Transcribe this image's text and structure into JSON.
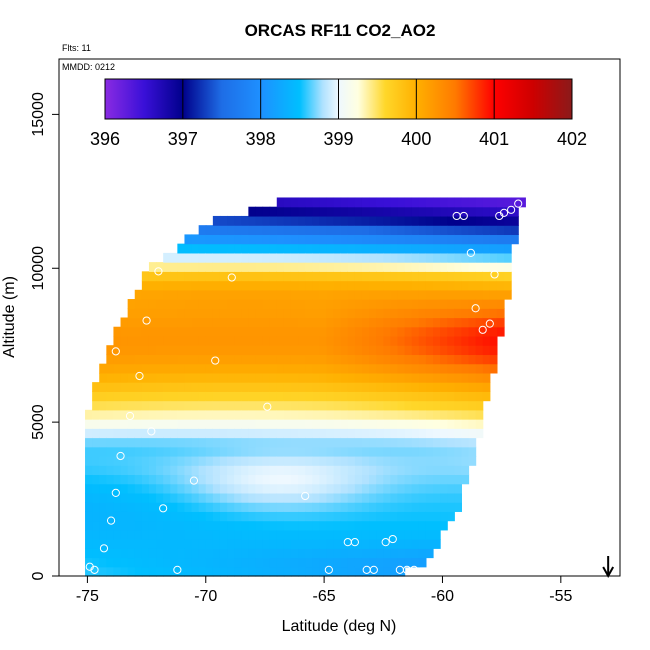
{
  "chart_data": {
    "type": "heatmap",
    "title": "ORCAS RF11 CO2_AO2",
    "xlabel": "Latitude (deg N)",
    "ylabel": "Altitude (m)",
    "xlim": [
      -76.2,
      -52.5
    ],
    "ylim": [
      0,
      16800
    ],
    "x_ticks": [
      -75,
      -70,
      -65,
      -60,
      -55
    ],
    "x_tick_labels": [
      "-75",
      "-70",
      "-65",
      "-60",
      "-55"
    ],
    "y_ticks": [
      0,
      5000,
      10000,
      15000
    ],
    "y_tick_labels": [
      "0",
      "5000",
      "10000",
      "15000"
    ],
    "annotations": {
      "flights": "Flts: 11",
      "date": "MMDD: 0212"
    },
    "colorbar": {
      "min": 396,
      "max": 402,
      "ticks": [
        396,
        397,
        398,
        399,
        400,
        401,
        402
      ],
      "tick_labels": [
        "396",
        "397",
        "398",
        "399",
        "400",
        "401",
        "402"
      ],
      "stops": [
        {
          "value": 396.0,
          "color": "#8a2be2"
        },
        {
          "value": 396.5,
          "color": "#3a10d8"
        },
        {
          "value": 397.0,
          "color": "#00008b"
        },
        {
          "value": 397.5,
          "color": "#1e6de6"
        },
        {
          "value": 398.0,
          "color": "#1e90ff"
        },
        {
          "value": 398.5,
          "color": "#00bfff"
        },
        {
          "value": 398.8,
          "color": "#b0e2ff"
        },
        {
          "value": 399.0,
          "color": "#eef8ff"
        },
        {
          "value": 399.25,
          "color": "#ffffe0"
        },
        {
          "value": 399.6,
          "color": "#ffd72a"
        },
        {
          "value": 400.0,
          "color": "#ffb000"
        },
        {
          "value": 400.5,
          "color": "#ff7a00"
        },
        {
          "value": 401.0,
          "color": "#ff0000"
        },
        {
          "value": 401.5,
          "color": "#cd0000"
        },
        {
          "value": 402.0,
          "color": "#8b1a1a"
        }
      ]
    },
    "field": {
      "lat_min": -75.1,
      "lat_max": -56.8,
      "top_profile": [
        {
          "lat": -75.1,
          "alt": 5000
        },
        {
          "lat": -74.0,
          "alt": 7500
        },
        {
          "lat": -72.5,
          "alt": 9800
        },
        {
          "lat": -70.0,
          "alt": 11300
        },
        {
          "lat": -67.0,
          "alt": 12000
        },
        {
          "lat": -63.0,
          "alt": 12100
        },
        {
          "lat": -56.8,
          "alt": 12200
        }
      ],
      "bottom_profile": [
        {
          "lat": -75.1,
          "alt": 0
        },
        {
          "lat": -64.0,
          "alt": 0
        },
        {
          "lat": -61.0,
          "alt": 400
        },
        {
          "lat": -59.5,
          "alt": 2000
        },
        {
          "lat": -58.5,
          "alt": 4500
        },
        {
          "lat": -57.5,
          "alt": 8000
        },
        {
          "lat": -57.0,
          "alt": 10500
        },
        {
          "lat": -56.8,
          "alt": 12200
        }
      ],
      "resolution": {
        "lat_step": 0.3,
        "alt_step": 300
      }
    },
    "measurement_points": [
      {
        "lat": -74.9,
        "alt": 300
      },
      {
        "lat": -74.7,
        "alt": 200
      },
      {
        "lat": -74.3,
        "alt": 900
      },
      {
        "lat": -74.0,
        "alt": 1800
      },
      {
        "lat": -73.8,
        "alt": 2700
      },
      {
        "lat": -73.6,
        "alt": 3900
      },
      {
        "lat": -73.2,
        "alt": 5200
      },
      {
        "lat": -72.8,
        "alt": 6500
      },
      {
        "lat": -73.8,
        "alt": 7300
      },
      {
        "lat": -72.5,
        "alt": 8300
      },
      {
        "lat": -72.0,
        "alt": 9900
      },
      {
        "lat": -72.3,
        "alt": 4700
      },
      {
        "lat": -71.8,
        "alt": 2200
      },
      {
        "lat": -70.5,
        "alt": 3100
      },
      {
        "lat": -71.2,
        "alt": 200
      },
      {
        "lat": -69.6,
        "alt": 7000
      },
      {
        "lat": -68.9,
        "alt": 9700
      },
      {
        "lat": -67.4,
        "alt": 5500
      },
      {
        "lat": -65.8,
        "alt": 2600
      },
      {
        "lat": -64.8,
        "alt": 200
      },
      {
        "lat": -64.0,
        "alt": 1100
      },
      {
        "lat": -63.7,
        "alt": 1100
      },
      {
        "lat": -63.2,
        "alt": 200
      },
      {
        "lat": -62.9,
        "alt": 200
      },
      {
        "lat": -62.4,
        "alt": 1100
      },
      {
        "lat": -62.1,
        "alt": 1200
      },
      {
        "lat": -61.8,
        "alt": 200
      },
      {
        "lat": -61.5,
        "alt": 200
      },
      {
        "lat": -61.2,
        "alt": 200
      },
      {
        "lat": -59.4,
        "alt": 11700
      },
      {
        "lat": -59.1,
        "alt": 11700
      },
      {
        "lat": -58.8,
        "alt": 10500
      },
      {
        "lat": -58.6,
        "alt": 8700
      },
      {
        "lat": -58.3,
        "alt": 8000
      },
      {
        "lat": -58.0,
        "alt": 8200
      },
      {
        "lat": -57.8,
        "alt": 9800
      },
      {
        "lat": -57.6,
        "alt": 11700
      },
      {
        "lat": -57.4,
        "alt": 11800
      },
      {
        "lat": -57.1,
        "alt": 11900
      },
      {
        "lat": -56.8,
        "alt": 12100
      }
    ],
    "marker": {
      "lat": -53.0,
      "label": "down-arrow"
    }
  }
}
